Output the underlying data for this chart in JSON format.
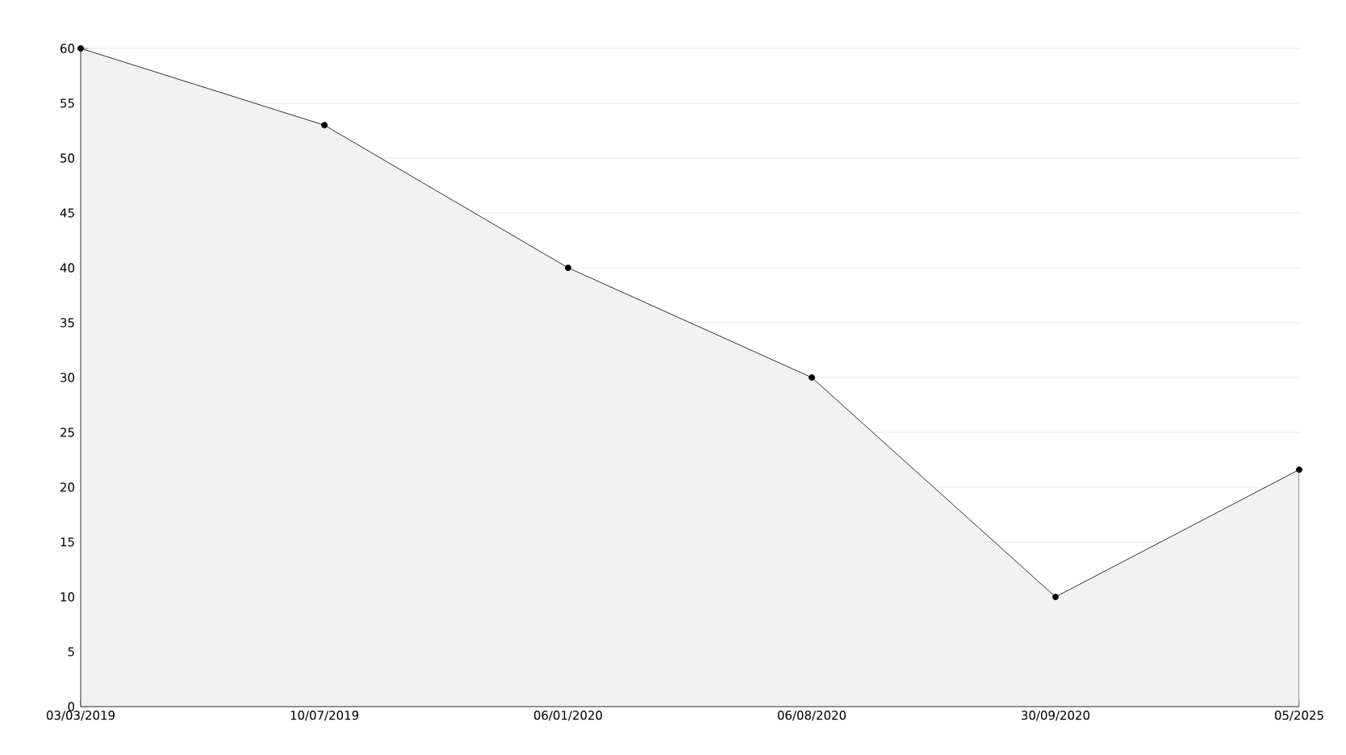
{
  "chart_data": {
    "type": "area",
    "categories": [
      "03/03/2019",
      "10/07/2019",
      "06/01/2020",
      "06/08/2020",
      "30/09/2020",
      "05/2025"
    ],
    "values": [
      60,
      53,
      40,
      30,
      10,
      21.6
    ],
    "color": "#000000",
    "ylim": [
      0,
      60
    ],
    "yticks": [
      0,
      5,
      10,
      15,
      20,
      25,
      30,
      35,
      40,
      45,
      50,
      55,
      60
    ],
    "grid": "y",
    "marker": "circle"
  }
}
